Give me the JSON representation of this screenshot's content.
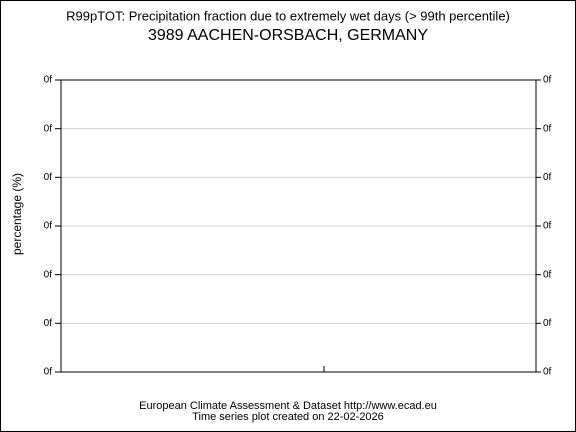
{
  "header": {
    "title": "R99pTOT: Precipitation fraction due to extremely wet days (> 99th percentile)",
    "subtitle": "3989 AACHEN-ORSBACH, GERMANY"
  },
  "plot": {
    "y_axis_label": "percentage (%)",
    "left_tick_labels": [
      "0f",
      "0f",
      "0f",
      "0f",
      "0f",
      "0f",
      "0f"
    ],
    "right_tick_labels": [
      "0f",
      "0f",
      "0f",
      "0f",
      "0f",
      "0f",
      "0f"
    ]
  },
  "footer": {
    "line1": "European Climate Assessment & Dataset  http://www.ecad.eu",
    "line2": "Time series plot created on 22-02-2026"
  }
}
